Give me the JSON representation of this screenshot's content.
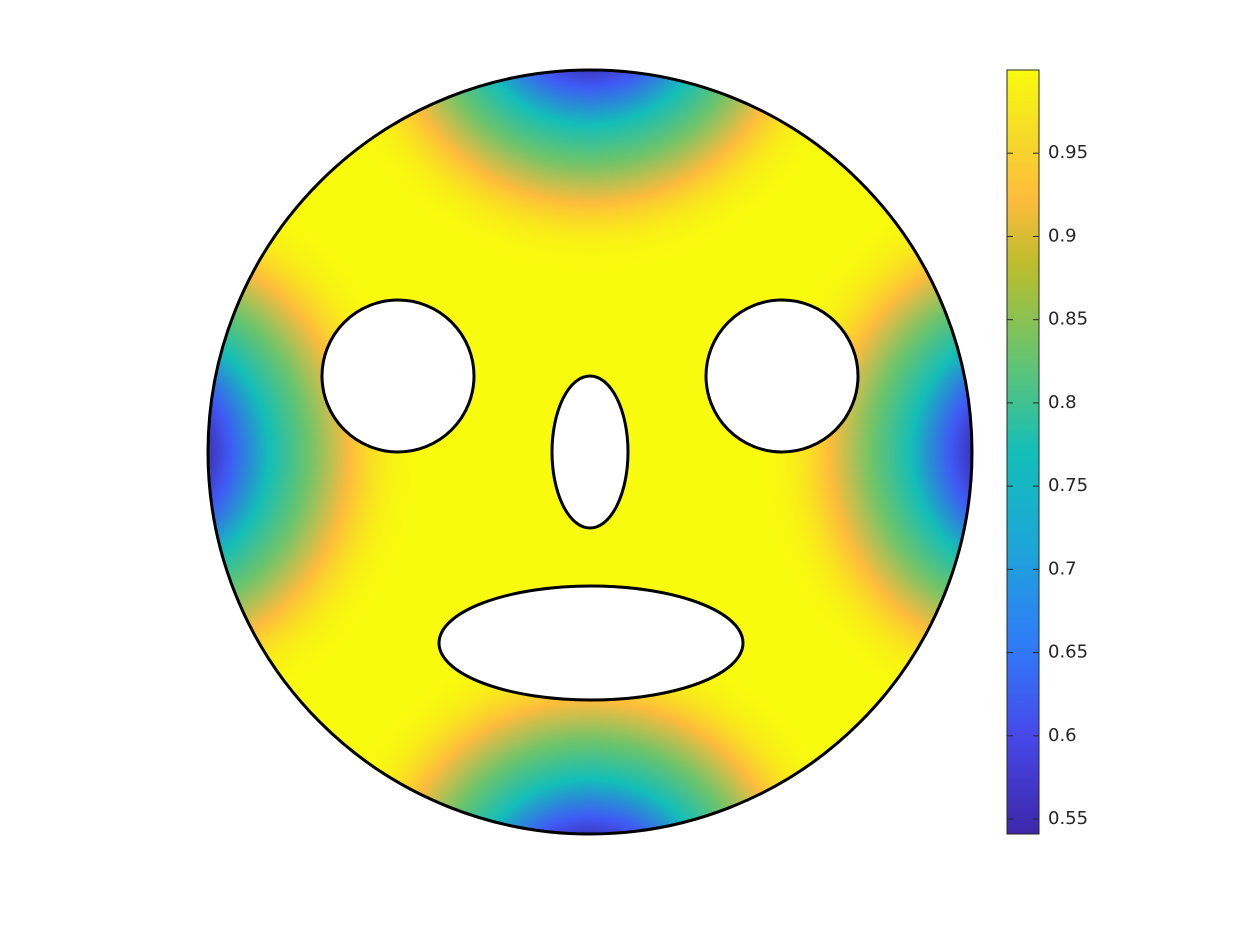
{
  "chart_data": {
    "type": "surface",
    "colormap": "parula",
    "ylim": [
      0.541,
      1
    ],
    "yticks": [
      0.55,
      0.6,
      0.65,
      0.7,
      0.75,
      0.8,
      0.85,
      0.9,
      0.95
    ]
  }
}
